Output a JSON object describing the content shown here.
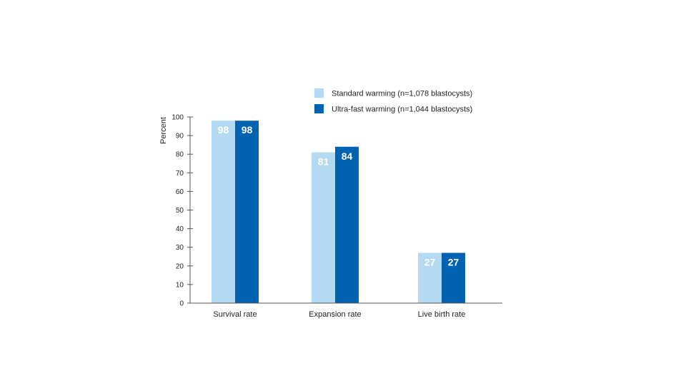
{
  "chart_data": {
    "type": "bar",
    "title": "",
    "xlabel": "",
    "ylabel": "Percent",
    "ylim": [
      0,
      100
    ],
    "yticks": [
      0,
      10,
      20,
      30,
      40,
      50,
      60,
      70,
      80,
      90,
      100
    ],
    "categories": [
      "Survival rate",
      "Expansion rate",
      "Live birth rate"
    ],
    "series": [
      {
        "name": "Standard warming (n=1,078 blastocysts)",
        "color": "#b3daf2",
        "values": [
          98,
          81,
          27
        ]
      },
      {
        "name": "Ultra-fast warming (n=1,044 blastocysts)",
        "color": "#0063b1",
        "values": [
          98,
          84,
          27
        ]
      }
    ],
    "grid": false,
    "legend_position": "top-right"
  }
}
